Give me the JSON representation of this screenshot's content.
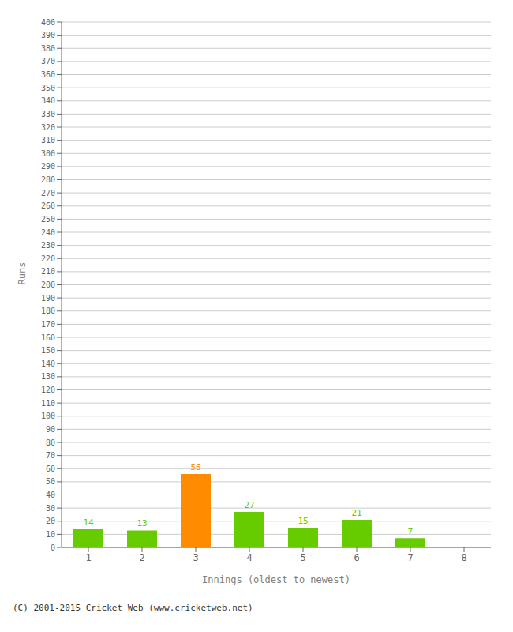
{
  "chart_data": {
    "type": "bar",
    "categories": [
      "1",
      "2",
      "3",
      "4",
      "5",
      "6",
      "7",
      "8"
    ],
    "values": [
      14,
      13,
      56,
      27,
      15,
      21,
      7,
      0
    ],
    "colors": [
      "#66cc00",
      "#66cc00",
      "#ff8c00",
      "#66cc00",
      "#66cc00",
      "#66cc00",
      "#66cc00",
      "#66cc00"
    ],
    "xlabel": "Innings (oldest to newest)",
    "ylabel": "Runs",
    "ylim": [
      0,
      400
    ],
    "yticks": [
      0,
      10,
      20,
      30,
      40,
      50,
      60,
      70,
      80,
      90,
      100,
      110,
      120,
      130,
      140,
      150,
      160,
      170,
      180,
      190,
      200,
      210,
      220,
      230,
      240,
      250,
      260,
      270,
      280,
      290,
      300,
      310,
      320,
      330,
      340,
      350,
      360,
      370,
      380,
      390,
      400
    ],
    "grid": true,
    "data_labels": true,
    "footer": "(C) 2001-2015 Cricket Web (www.cricketweb.net)"
  }
}
